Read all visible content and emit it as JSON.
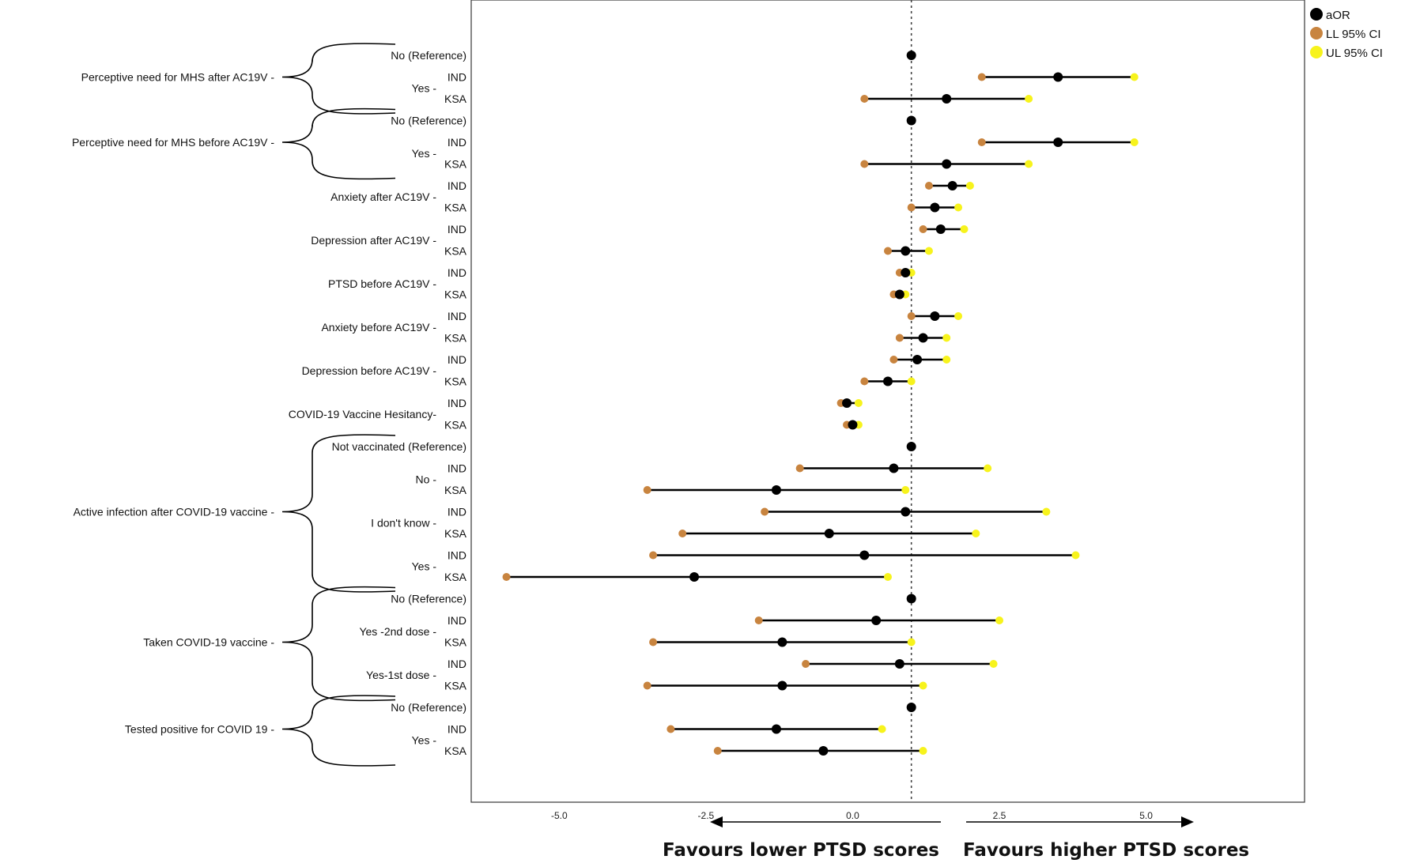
{
  "chart_data": {
    "type": "forest",
    "title": "",
    "xlabel": "",
    "ylabel": "",
    "xlim": [
      -6.5,
      7.7
    ],
    "reference_line": 1.0,
    "x_ticks": [
      {
        "label": "-5.0",
        "value": -5.0
      },
      {
        "label": "-2.5",
        "value": -2.5
      },
      {
        "label": "0.0",
        "value": 0.0
      },
      {
        "label": "2.5",
        "value": 2.5
      },
      {
        "label": "5.0",
        "value": 5.0
      }
    ],
    "legend": [
      {
        "label": "aOR",
        "color": "#000000"
      },
      {
        "label": "LL 95% CI",
        "color": "#c8843f"
      },
      {
        "label": "UL 95% CI",
        "color": "#f7f31c"
      }
    ],
    "left_caption": "Favours lower PTSD scores",
    "right_caption": "Favours higher PTSD scores",
    "groups": [
      {
        "label": "Perceptive need for MHS after AC19V -",
        "bracket": true
      },
      {
        "label": "Perceptive need for MHS before AC19V -",
        "bracket": true
      },
      {
        "label": "Anxiety after AC19V -",
        "bracket": false
      },
      {
        "label": "Depression after AC19V -",
        "bracket": false
      },
      {
        "label": "PTSD before AC19V -",
        "bracket": false
      },
      {
        "label": "Anxiety before AC19V -",
        "bracket": false
      },
      {
        "label": "Depression before AC19V -",
        "bracket": false
      },
      {
        "label": "COVID-19 Vaccine Hesitancy-",
        "bracket": false
      },
      {
        "label": "Active infection after COVID-19 vaccine -",
        "bracket": true
      },
      {
        "label": "Taken COVID-19 vaccine -",
        "bracket": true
      },
      {
        "label": "Tested positive for COVID 19 -",
        "bracket": true
      }
    ],
    "subgroups": [
      {
        "label": "Yes -",
        "group": 0
      },
      {
        "label": "Yes -",
        "group": 1
      },
      {
        "label": "No -",
        "group": 8
      },
      {
        "label": "I don't know -",
        "group": 8
      },
      {
        "label": "Yes -",
        "group": 8
      },
      {
        "label": "Yes -2nd dose -",
        "group": 9
      },
      {
        "label": "Yes-1st dose -",
        "group": 9
      },
      {
        "label": "Yes -",
        "group": 10
      }
    ],
    "rows": [
      {
        "label": "No (Reference)",
        "group": 0,
        "aor": 1.0
      },
      {
        "label": "IND",
        "group": 0,
        "sub": 0,
        "aor": 3.5,
        "ll": 2.2,
        "ul": 4.8
      },
      {
        "label": "KSA",
        "group": 0,
        "sub": 0,
        "aor": 1.6,
        "ll": 0.2,
        "ul": 3.0
      },
      {
        "label": "No (Reference)",
        "group": 1,
        "aor": 1.0
      },
      {
        "label": "IND",
        "group": 1,
        "sub": 1,
        "aor": 3.5,
        "ll": 2.2,
        "ul": 4.8
      },
      {
        "label": "KSA",
        "group": 1,
        "sub": 1,
        "aor": 1.6,
        "ll": 0.2,
        "ul": 3.0
      },
      {
        "label": "IND",
        "group": 2,
        "aor": 1.7,
        "ll": 1.3,
        "ul": 2.0
      },
      {
        "label": "KSA",
        "group": 2,
        "aor": 1.4,
        "ll": 1.0,
        "ul": 1.8
      },
      {
        "label": "IND",
        "group": 3,
        "aor": 1.5,
        "ll": 1.2,
        "ul": 1.9
      },
      {
        "label": "KSA",
        "group": 3,
        "aor": 0.9,
        "ll": 0.6,
        "ul": 1.3
      },
      {
        "label": "IND",
        "group": 4,
        "aor": 0.9,
        "ll": 0.8,
        "ul": 1.0
      },
      {
        "label": "KSA",
        "group": 4,
        "aor": 0.8,
        "ll": 0.7,
        "ul": 0.9
      },
      {
        "label": "IND",
        "group": 5,
        "aor": 1.4,
        "ll": 1.0,
        "ul": 1.8
      },
      {
        "label": "KSA",
        "group": 5,
        "aor": 1.2,
        "ll": 0.8,
        "ul": 1.6
      },
      {
        "label": "IND",
        "group": 6,
        "aor": 1.1,
        "ll": 0.7,
        "ul": 1.6
      },
      {
        "label": "KSA",
        "group": 6,
        "aor": 0.6,
        "ll": 0.2,
        "ul": 1.0
      },
      {
        "label": "IND",
        "group": 7,
        "aor": -0.1,
        "ll": -0.2,
        "ul": 0.1
      },
      {
        "label": "KSA",
        "group": 7,
        "aor": 0.0,
        "ll": -0.1,
        "ul": 0.1
      },
      {
        "label": "Not vaccinated (Reference)",
        "group": 8,
        "aor": 1.0
      },
      {
        "label": "IND",
        "group": 8,
        "sub": 2,
        "aor": 0.7,
        "ll": -0.9,
        "ul": 2.3
      },
      {
        "label": "KSA",
        "group": 8,
        "sub": 2,
        "aor": -1.3,
        "ll": -3.5,
        "ul": 0.9
      },
      {
        "label": "IND",
        "group": 8,
        "sub": 3,
        "aor": 0.9,
        "ll": -1.5,
        "ul": 3.3
      },
      {
        "label": "KSA",
        "group": 8,
        "sub": 3,
        "aor": -0.4,
        "ll": -2.9,
        "ul": 2.1
      },
      {
        "label": "IND",
        "group": 8,
        "sub": 4,
        "aor": 0.2,
        "ll": -3.4,
        "ul": 3.8
      },
      {
        "label": "KSA",
        "group": 8,
        "sub": 4,
        "aor": -2.7,
        "ll": -5.9,
        "ul": 0.6
      },
      {
        "label": "No (Reference)",
        "group": 9,
        "aor": 1.0
      },
      {
        "label": "IND",
        "group": 9,
        "sub": 5,
        "aor": 0.4,
        "ll": -1.6,
        "ul": 2.5
      },
      {
        "label": "KSA",
        "group": 9,
        "sub": 5,
        "aor": -1.2,
        "ll": -3.4,
        "ul": 1.0
      },
      {
        "label": "IND",
        "group": 9,
        "sub": 6,
        "aor": 0.8,
        "ll": -0.8,
        "ul": 2.4
      },
      {
        "label": "KSA",
        "group": 9,
        "sub": 6,
        "aor": -1.2,
        "ll": -3.5,
        "ul": 1.2
      },
      {
        "label": "No (Reference)",
        "group": 10,
        "aor": 1.0
      },
      {
        "label": "IND",
        "group": 10,
        "sub": 7,
        "aor": -1.3,
        "ll": -3.1,
        "ul": 0.5
      },
      {
        "label": "KSA",
        "group": 10,
        "sub": 7,
        "aor": -0.5,
        "ll": -2.3,
        "ul": 1.2
      }
    ]
  }
}
